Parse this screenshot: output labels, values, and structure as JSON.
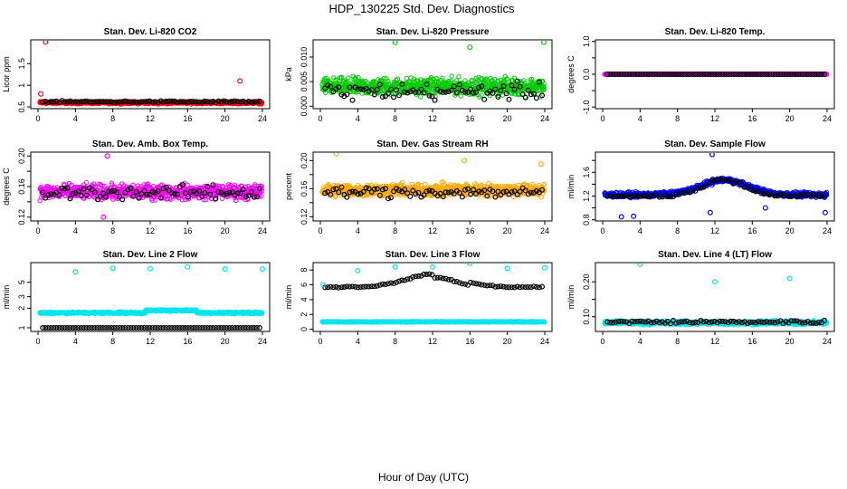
{
  "figure": {
    "title": "HDP_130225  Std. Dev. Diagnostics",
    "xlabel": "Hour of Day (UTC)"
  },
  "chart_data": [
    {
      "type": "scatter",
      "title": "Stan. Dev. Li-820 CO2",
      "ylabel": "Licor ppm",
      "xlim": [
        0,
        24
      ],
      "ylim": [
        0.46,
        2.05
      ],
      "xticks": [
        0,
        4,
        8,
        12,
        16,
        20,
        24
      ],
      "yticks": [
        0.5,
        1.0,
        1.5
      ],
      "ytick_labels": [
        "0.5",
        "1",
        "1.5"
      ],
      "color": "#ff0000",
      "base": 0.6,
      "noise": 0.04,
      "black_base": 0.62,
      "black_noise": 0.03,
      "outliers": [
        [
          0.8,
          2.0
        ],
        [
          0.3,
          0.8
        ],
        [
          21.6,
          1.1
        ]
      ]
    },
    {
      "type": "scatter",
      "title": "Stan. Dev. Li-820 Pressure",
      "ylabel": "kPa",
      "xlim": [
        0,
        24
      ],
      "ylim": [
        -0.0005,
        0.0135
      ],
      "xticks": [
        0,
        4,
        8,
        12,
        16,
        20,
        24
      ],
      "yticks": [
        0.0,
        0.005,
        0.01
      ],
      "ytick_labels": [
        "0.000",
        "0.005",
        "0.010"
      ],
      "color": "#00cc00",
      "base": 0.004,
      "noise": 0.0025,
      "black_base": 0.003,
      "black_noise": 0.0025,
      "outliers": [
        [
          8,
          0.013
        ],
        [
          16,
          0.012
        ],
        [
          23.9,
          0.013
        ]
      ]
    },
    {
      "type": "scatter",
      "title": "Stan. Dev. Li-820 Temp.",
      "ylabel": "degrees C",
      "xlim": [
        0,
        24
      ],
      "ylim": [
        -1.05,
        1.05
      ],
      "xticks": [
        0,
        4,
        8,
        12,
        16,
        20,
        24
      ],
      "yticks": [
        -1.0,
        -0.5,
        0.0,
        0.5,
        1.0
      ],
      "ytick_labels": [
        "-1.0",
        "",
        "0.0",
        "",
        "1.0"
      ],
      "color": "#ff00ff",
      "base": 0.0,
      "noise": 0.0,
      "black_base": 0.0,
      "black_noise": 0.0,
      "outliers": []
    },
    {
      "type": "scatter",
      "title": "Stan. Dev. Amb. Box Temp.",
      "ylabel": "degrees C",
      "xlim": [
        0,
        24
      ],
      "ylim": [
        0.115,
        0.205
      ],
      "xticks": [
        0,
        4,
        8,
        12,
        16,
        20,
        24
      ],
      "yticks": [
        0.12,
        0.14,
        0.16,
        0.18,
        0.2
      ],
      "ytick_labels": [
        "0.12",
        "",
        "0.16",
        "",
        "0.20"
      ],
      "color": "#ff00ff",
      "base": 0.153,
      "noise": 0.014,
      "black_base": 0.152,
      "black_noise": 0.013,
      "outliers": [
        [
          7.4,
          0.2
        ],
        [
          7.0,
          0.12
        ]
      ]
    },
    {
      "type": "scatter",
      "title": "Stan. Dev. Gas Stream RH",
      "ylabel": "percent",
      "xlim": [
        0,
        24
      ],
      "ylim": [
        0.114,
        0.212
      ],
      "xticks": [
        0,
        4,
        8,
        12,
        16,
        20,
        24
      ],
      "yticks": [
        0.12,
        0.14,
        0.16,
        0.18,
        0.2
      ],
      "ytick_labels": [
        "0.12",
        "",
        "0.16",
        "",
        "0.20"
      ],
      "color": "#ffaa00",
      "base": 0.158,
      "noise": 0.013,
      "black_base": 0.155,
      "black_noise": 0.012,
      "outliers": [
        [
          1.7,
          0.21
        ],
        [
          23.6,
          0.195
        ],
        [
          15.4,
          0.2
        ]
      ]
    },
    {
      "type": "scatter",
      "title": "Stan. Dev. Sample Flow",
      "ylabel": "ml/min",
      "xlim": [
        0,
        24
      ],
      "ylim": [
        0.78,
        1.94
      ],
      "xticks": [
        0,
        4,
        8,
        12,
        16,
        20,
        24
      ],
      "yticks": [
        0.8,
        1.0,
        1.2,
        1.4,
        1.6,
        1.8
      ],
      "ytick_labels": [
        "0.8",
        "",
        "1.2",
        "",
        "1.6",
        ""
      ],
      "color": "#0000ff",
      "base": 1.22,
      "noise": 0.06,
      "black_base": 1.22,
      "black_noise": 0.04,
      "outliers": [
        [
          11.7,
          1.9
        ],
        [
          2.0,
          0.85
        ],
        [
          3.3,
          0.86
        ],
        [
          11.5,
          0.92
        ],
        [
          23.8,
          0.92
        ],
        [
          17.4,
          1.0
        ]
      ]
    },
    {
      "type": "scatter",
      "title": "Stan. Dev. Line 2 Flow",
      "ylabel": "ml/min",
      "xlim": [
        0,
        24
      ],
      "ylim": [
        0.88,
        10.0
      ],
      "yscale": "log",
      "xticks": [
        0,
        4,
        8,
        12,
        16,
        20,
        24
      ],
      "yticks": [
        1,
        2,
        3,
        5
      ],
      "ytick_labels": [
        "1",
        "2",
        "3",
        "5"
      ],
      "color": "#00e5ee",
      "base": 1.7,
      "noise": 0.08,
      "black_base": 1.0,
      "black_noise": 0.0,
      "outliers": [
        [
          4,
          7.2
        ],
        [
          8,
          8.2
        ],
        [
          12,
          8.1
        ],
        [
          16,
          8.6
        ],
        [
          20,
          8.0
        ],
        [
          24,
          8.0
        ]
      ]
    },
    {
      "type": "scatter",
      "title": "Stan. Dev. Line 3 Flow",
      "ylabel": "ml/min",
      "xlim": [
        0,
        24
      ],
      "ylim": [
        -0.3,
        9.0
      ],
      "xticks": [
        0,
        4,
        8,
        12,
        16,
        20,
        24
      ],
      "yticks": [
        0,
        2,
        4,
        6,
        8
      ],
      "ytick_labels": [
        "0",
        "2",
        "4",
        "6",
        "8"
      ],
      "color": "#00e5ee",
      "base": 1.0,
      "noise": 0.08,
      "black_base": 6.0,
      "black_noise": 0.15,
      "outliers": [
        [
          4,
          7.9
        ],
        [
          8,
          8.4
        ],
        [
          12,
          8.4
        ],
        [
          16,
          8.9
        ],
        [
          20,
          8.2
        ],
        [
          24,
          8.3
        ],
        [
          0.3,
          6.0
        ]
      ]
    },
    {
      "type": "scatter",
      "title": "Stan. Dev. Line 4 (LT) Flow",
      "ylabel": "ml/min",
      "xlim": [
        0,
        24
      ],
      "ylim": [
        0.058,
        0.255
      ],
      "xticks": [
        0,
        4,
        8,
        12,
        16,
        20,
        24
      ],
      "yticks": [
        0.1,
        0.15,
        0.2
      ],
      "ytick_labels": [
        "0.10",
        "",
        "0.20"
      ],
      "color": "#00e5ee",
      "base": 0.083,
      "noise": 0.008,
      "black_base": 0.085,
      "black_noise": 0.007,
      "outliers": [
        [
          4,
          0.25
        ],
        [
          12,
          0.2
        ],
        [
          20,
          0.21
        ]
      ]
    }
  ]
}
